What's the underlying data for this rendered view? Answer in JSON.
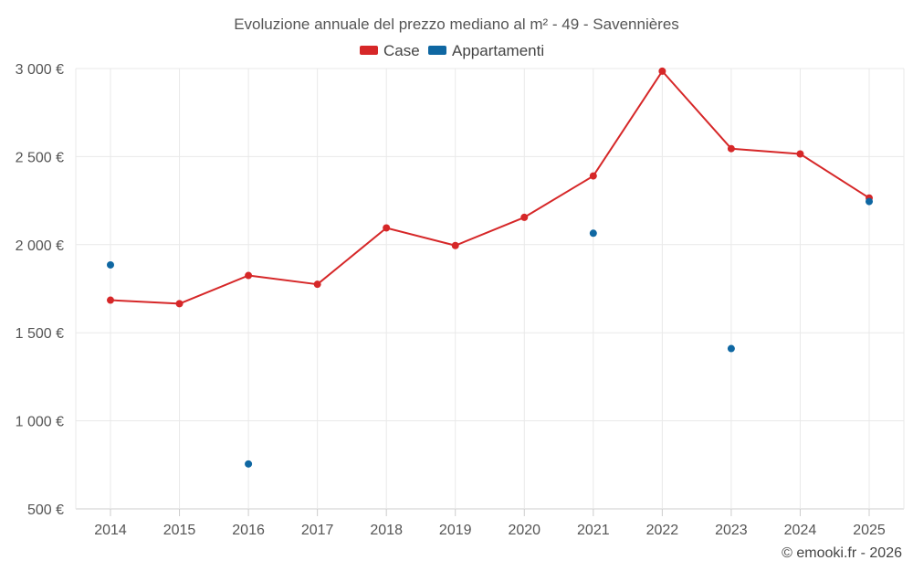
{
  "chart_data": {
    "type": "line",
    "title": "Evoluzione annuale del prezzo mediano al m² - 49 - Savennières",
    "categories": [
      "2014",
      "2015",
      "2016",
      "2017",
      "2018",
      "2019",
      "2020",
      "2021",
      "2022",
      "2023",
      "2024",
      "2025"
    ],
    "y_ticks": [
      500,
      1000,
      1500,
      2000,
      2500,
      3000
    ],
    "y_tick_labels": [
      "500 €",
      "1 000 €",
      "1 500 €",
      "2 000 €",
      "2 500 €",
      "3 000 €"
    ],
    "ylim": [
      500,
      3000
    ],
    "grid": true,
    "legend_position": "top-center",
    "series": [
      {
        "name": "Case",
        "color": "#d62728",
        "style": "line",
        "values": [
          1685,
          1665,
          1825,
          1775,
          2095,
          1995,
          2155,
          2390,
          2985,
          2545,
          2515,
          2265
        ]
      },
      {
        "name": "Appartamenti",
        "color": "#0f67a2",
        "style": "points",
        "values": [
          1885,
          null,
          755,
          null,
          null,
          null,
          null,
          2065,
          null,
          1410,
          null,
          2245
        ]
      }
    ]
  },
  "credit": "© emooki.fr - 2026"
}
